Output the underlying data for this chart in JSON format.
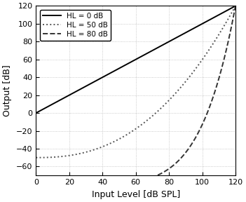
{
  "title": "",
  "xlabel": "Input Level [dB SPL]",
  "ylabel": "Output [dB]",
  "xlim": [
    0,
    120
  ],
  "ylim": [
    -70,
    120
  ],
  "xticks": [
    0,
    20,
    40,
    60,
    80,
    100,
    120
  ],
  "yticks": [
    -60,
    -40,
    -20,
    0,
    20,
    40,
    60,
    80,
    100,
    120
  ],
  "lines": [
    {
      "label": "HL = 0 dB",
      "linestyle": "solid",
      "color": "#000000",
      "linewidth": 1.4,
      "HL": 0,
      "exponent": 1.0
    },
    {
      "label": "HL = 50 dB",
      "linestyle": "dotted",
      "color": "#555555",
      "linewidth": 1.4,
      "HL": 50,
      "exponent": 2.4
    },
    {
      "label": "HL = 80 dB",
      "linestyle": "dashed",
      "color": "#333333",
      "linewidth": 1.4,
      "HL": 80,
      "exponent": 6.0
    }
  ],
  "grid_color": "#bbbbbb",
  "grid_linestyle": "dotted",
  "grid_linewidth": 0.6,
  "legend_fontsize": 7.5,
  "legend_loc": "upper left",
  "background_color": "#ffffff",
  "tick_labelsize": 8,
  "xlabel_fontsize": 9,
  "ylabel_fontsize": 9
}
